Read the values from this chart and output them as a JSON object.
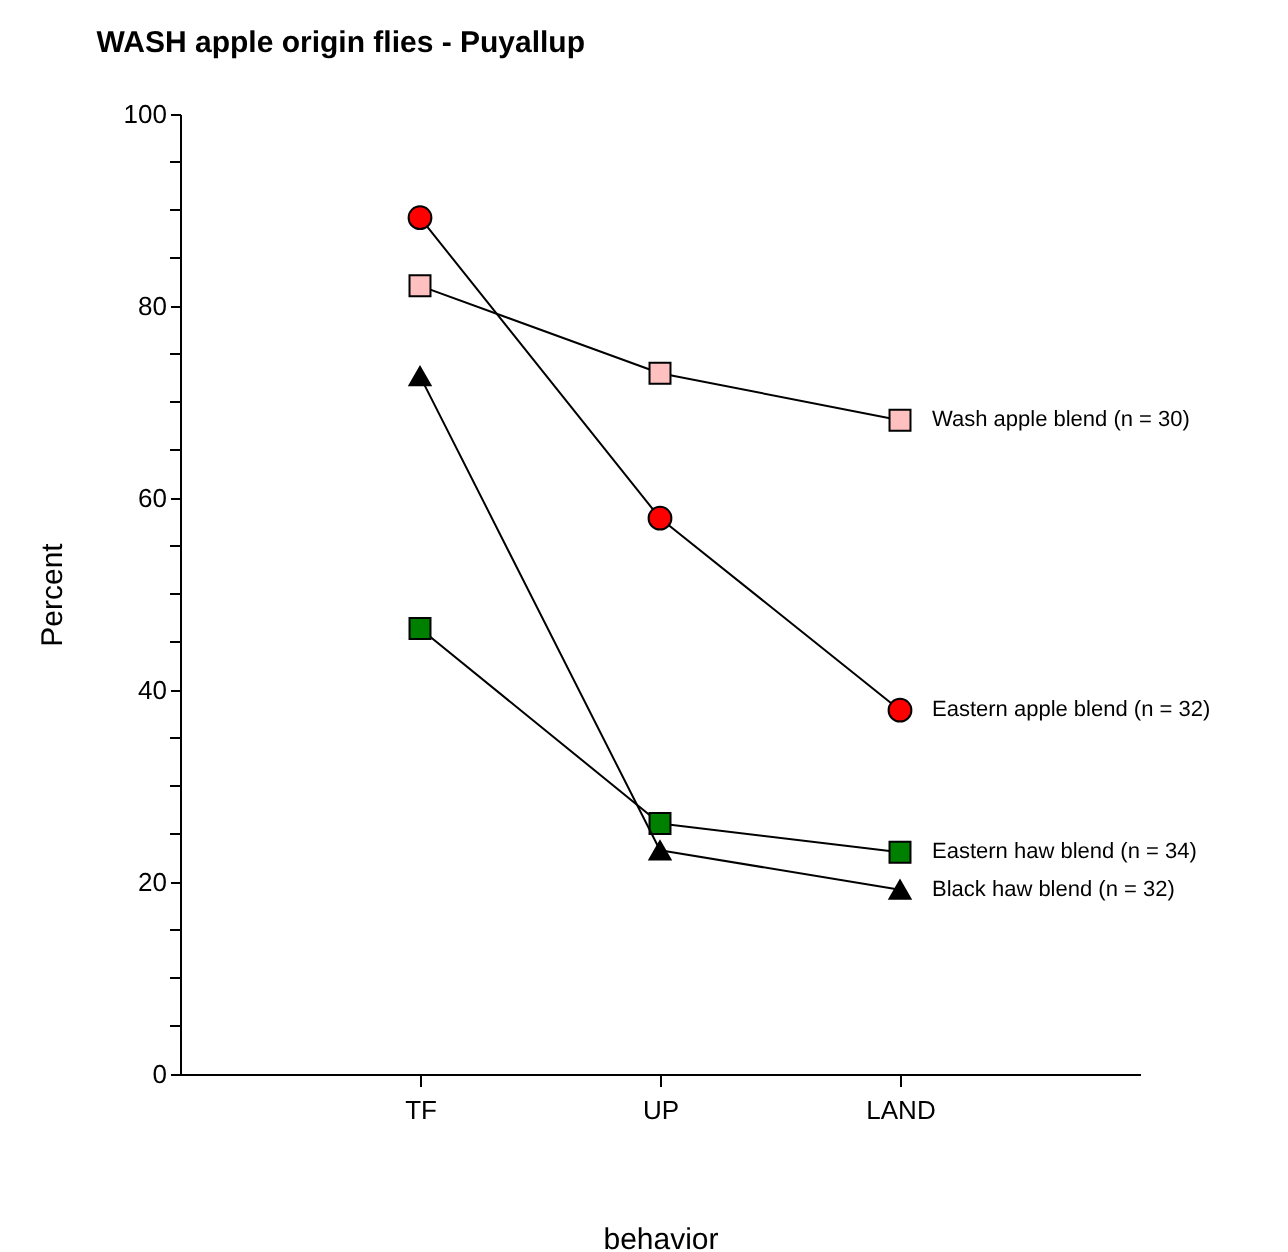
{
  "chart_data": {
    "type": "line",
    "title": "WASH apple origin flies - Puyallup",
    "xlabel": "behavior",
    "ylabel": "Percent",
    "categories": [
      "TF",
      "UP",
      "LAND"
    ],
    "series": [
      {
        "name": "Wash apple blend (n = 30)",
        "color": "#ffc0c0",
        "marker": "square",
        "values": [
          82.1,
          73.0,
          68.1
        ]
      },
      {
        "name": "Eastern apple blend (n = 32)",
        "color": "#ff0000",
        "marker": "circle",
        "values": [
          89.2,
          57.9,
          37.9
        ]
      },
      {
        "name": "Eastern haw blend (n = 34)",
        "color": "#008000",
        "marker": "square",
        "values": [
          46.4,
          26.1,
          23.1
        ]
      },
      {
        "name": "Black haw blend (n = 32)",
        "color": "#000000",
        "marker": "triangle",
        "values": [
          72.7,
          23.3,
          19.2
        ]
      }
    ],
    "ylim": [
      0,
      100
    ],
    "yticks": [
      0,
      {
        "value": 5,
        "label": null
      },
      {
        "value": 10,
        "label": null
      },
      {
        "value": 15,
        "label": null
      },
      20,
      {
        "value": 25,
        "label": null
      },
      {
        "value": 30,
        "label": null
      },
      {
        "value": 35,
        "label": null
      },
      40,
      {
        "value": 45,
        "label": null
      },
      {
        "value": 50,
        "label": null
      },
      {
        "value": 55,
        "label": null
      },
      60,
      {
        "value": 65,
        "label": null
      },
      {
        "value": 70,
        "label": null
      },
      {
        "value": 75,
        "label": null
      },
      80,
      {
        "value": 85,
        "label": null
      },
      {
        "value": 90,
        "label": null
      },
      {
        "value": 95,
        "label": null
      },
      100
    ],
    "grid": false,
    "line_style": "solid"
  }
}
